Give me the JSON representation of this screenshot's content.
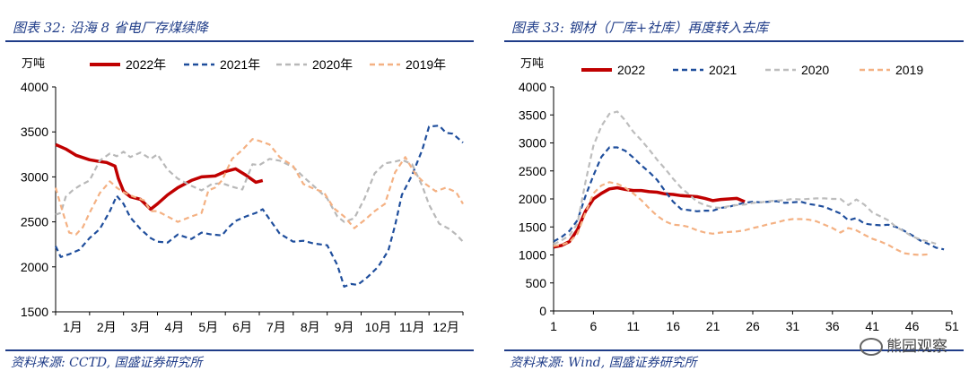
{
  "watermark": "熊园观察",
  "left": {
    "title": "图表 32:  沿海 8 省电厂存煤续降",
    "source": "资料来源:  CCTD,  国盛证券研究所",
    "chart_data": {
      "type": "line",
      "y_unit_label": "万吨",
      "ylim": [
        1500,
        4000
      ],
      "yticks": [
        1500,
        2000,
        2500,
        3000,
        3500,
        4000
      ],
      "xlim": [
        1,
        13
      ],
      "xticks": [
        1,
        2,
        3,
        4,
        5,
        6,
        7,
        8,
        9,
        10,
        11,
        12
      ],
      "xtick_labels": [
        "1月",
        "2月",
        "3月",
        "4月",
        "5月",
        "6月",
        "7月",
        "8月",
        "9月",
        "10月",
        "11月",
        "12月"
      ],
      "legend_position": "top",
      "series": [
        {
          "name": "2022年",
          "color": "#c00000",
          "dash": "solid",
          "width": 3.5,
          "x": [
            1,
            1.3,
            1.6,
            2,
            2.3,
            2.5,
            2.75,
            2.85,
            3,
            3.2,
            3.5,
            3.8,
            4,
            4.3,
            4.6,
            5,
            5.3,
            5.7,
            6,
            6.3,
            6.6,
            6.9,
            7.1
          ],
          "y": [
            3360,
            3310,
            3240,
            3190,
            3170,
            3160,
            3120,
            2980,
            2840,
            2780,
            2750,
            2640,
            2700,
            2800,
            2880,
            2960,
            3000,
            3010,
            3060,
            3090,
            3020,
            2940,
            2960
          ]
        },
        {
          "name": "2021年",
          "color": "#1f4e9c",
          "dash": "6,4",
          "width": 2.2,
          "x": [
            1,
            1.15,
            1.4,
            1.7,
            2,
            2.3,
            2.6,
            2.8,
            3,
            3.2,
            3.5,
            3.8,
            4,
            4.3,
            4.6,
            5,
            5.3,
            5.6,
            5.9,
            6.1,
            6.3,
            6.6,
            6.9,
            7.1,
            7.3,
            7.6,
            8,
            8.3,
            8.6,
            9,
            9.3,
            9.5,
            9.7,
            9.9,
            10.2,
            10.5,
            10.8,
            11,
            11.2,
            11.5,
            11.8,
            12,
            12.3,
            12.5,
            12.7,
            13
          ],
          "y": [
            2230,
            2110,
            2140,
            2190,
            2320,
            2420,
            2620,
            2790,
            2700,
            2550,
            2420,
            2320,
            2280,
            2270,
            2360,
            2310,
            2380,
            2360,
            2350,
            2440,
            2510,
            2560,
            2600,
            2640,
            2530,
            2370,
            2280,
            2290,
            2260,
            2240,
            2020,
            1780,
            1810,
            1800,
            1890,
            2000,
            2180,
            2460,
            2800,
            3020,
            3300,
            3560,
            3570,
            3490,
            3480,
            3380
          ]
        },
        {
          "name": "2020年",
          "color": "#b8b8b8",
          "dash": "6,4",
          "width": 2.2,
          "x": [
            1,
            1.15,
            1.3,
            1.5,
            1.7,
            2,
            2.3,
            2.6,
            2.8,
            3,
            3.2,
            3.5,
            3.8,
            4,
            4.3,
            4.6,
            5,
            5.3,
            5.6,
            5.9,
            6.2,
            6.5,
            6.8,
            7,
            7.3,
            7.6,
            8,
            8.3,
            8.6,
            9,
            9.3,
            9.5,
            9.8,
            10.1,
            10.4,
            10.7,
            11,
            11.2,
            11.5,
            11.8,
            12,
            12.3,
            12.6,
            12.8,
            13
          ],
          "y": [
            2580,
            2600,
            2780,
            2850,
            2900,
            2960,
            3180,
            3260,
            3230,
            3280,
            3220,
            3270,
            3200,
            3250,
            3080,
            2980,
            2900,
            2850,
            2920,
            2930,
            2890,
            2860,
            3140,
            3130,
            3200,
            3180,
            3110,
            3000,
            2900,
            2760,
            2560,
            2500,
            2540,
            2760,
            3040,
            3150,
            3170,
            3190,
            3140,
            2900,
            2690,
            2480,
            2420,
            2360,
            2280
          ]
        },
        {
          "name": "2019年",
          "color": "#f4b183",
          "dash": "6,4",
          "width": 2.2,
          "x": [
            1,
            1.2,
            1.4,
            1.6,
            1.8,
            2,
            2.3,
            2.6,
            2.8,
            3,
            3.3,
            3.6,
            3.8,
            4,
            4.3,
            4.6,
            5,
            5.3,
            5.5,
            5.7,
            5.9,
            6.2,
            6.5,
            6.8,
            7,
            7.3,
            7.6,
            8,
            8.3,
            8.6,
            8.9,
            9.2,
            9.5,
            9.8,
            10.1,
            10.4,
            10.7,
            11,
            11.3,
            11.6,
            11.9,
            12.2,
            12.5,
            12.8,
            13
          ],
          "y": [
            2880,
            2620,
            2380,
            2360,
            2440,
            2600,
            2820,
            2950,
            2880,
            2830,
            2780,
            2740,
            2620,
            2620,
            2560,
            2500,
            2560,
            2600,
            2850,
            2880,
            2960,
            3200,
            3300,
            3420,
            3400,
            3360,
            3220,
            3120,
            2920,
            2870,
            2830,
            2650,
            2560,
            2430,
            2520,
            2620,
            2700,
            3050,
            3220,
            3030,
            2920,
            2840,
            2880,
            2830,
            2700
          ]
        }
      ]
    }
  },
  "right": {
    "title": "图表 33:  钢材（厂库+社库）再度转入去库",
    "source": "资料来源:  Wind,  国盛证券研究所",
    "chart_data": {
      "type": "line",
      "y_unit_label": "万吨",
      "ylim": [
        0,
        4000
      ],
      "yticks": [
        0,
        500,
        1000,
        1500,
        2000,
        2500,
        3000,
        3500,
        4000
      ],
      "xlim": [
        1,
        51
      ],
      "xticks": [
        1,
        6,
        11,
        16,
        21,
        26,
        31,
        36,
        41,
        46,
        51
      ],
      "legend_position": "top",
      "series": [
        {
          "name": "2022",
          "color": "#c00000",
          "dash": "solid",
          "width": 3.5,
          "x": [
            1,
            2,
            3,
            4,
            5,
            6,
            7,
            8,
            9,
            10,
            11,
            12,
            13,
            14,
            15,
            16,
            17,
            18,
            19,
            20,
            21,
            22,
            23,
            24,
            25
          ],
          "y": [
            1140,
            1170,
            1240,
            1450,
            1780,
            2000,
            2100,
            2180,
            2200,
            2170,
            2150,
            2150,
            2130,
            2120,
            2090,
            2080,
            2060,
            2050,
            2040,
            2010,
            1970,
            1990,
            2000,
            2010,
            1950
          ]
        },
        {
          "name": "2021",
          "color": "#1f4e9c",
          "dash": "6,4",
          "width": 2.2,
          "x": [
            1,
            2,
            3,
            4,
            5,
            6,
            7,
            8,
            9,
            10,
            11,
            12,
            13,
            14,
            15,
            16,
            17,
            18,
            19,
            20,
            21,
            22,
            23,
            24,
            25,
            26,
            27,
            28,
            29,
            30,
            31,
            32,
            33,
            34,
            35,
            36,
            37,
            38,
            39,
            40,
            41,
            42,
            43,
            44,
            45,
            46,
            47,
            48,
            49,
            50
          ],
          "y": [
            1240,
            1320,
            1430,
            1620,
            2050,
            2420,
            2750,
            2920,
            2920,
            2860,
            2740,
            2600,
            2480,
            2340,
            2140,
            1950,
            1820,
            1800,
            1780,
            1790,
            1790,
            1840,
            1860,
            1900,
            1930,
            1950,
            1940,
            1950,
            1960,
            1930,
            1940,
            1950,
            1910,
            1890,
            1860,
            1800,
            1740,
            1620,
            1660,
            1560,
            1540,
            1530,
            1540,
            1500,
            1430,
            1350,
            1260,
            1200,
            1130,
            1100
          ]
        },
        {
          "name": "2020",
          "color": "#bdbdbd",
          "dash": "6,4",
          "width": 2.2,
          "x": [
            1,
            2,
            3,
            4,
            5,
            6,
            7,
            8,
            9,
            10,
            11,
            12,
            13,
            14,
            15,
            16,
            17,
            18,
            19,
            20,
            21,
            22,
            23,
            24,
            25,
            26,
            27,
            28,
            29,
            30,
            31,
            32,
            33,
            34,
            35,
            36,
            37,
            38,
            39,
            40,
            41,
            42,
            43,
            44,
            45,
            46,
            47,
            48,
            49
          ],
          "y": [
            1190,
            1260,
            1350,
            1560,
            2300,
            2950,
            3300,
            3520,
            3560,
            3400,
            3200,
            3050,
            2880,
            2700,
            2540,
            2360,
            2200,
            2080,
            1950,
            1890,
            1850,
            1840,
            1870,
            1890,
            1900,
            1930,
            1940,
            1960,
            1970,
            1980,
            2000,
            1990,
            2000,
            2010,
            2010,
            2000,
            2000,
            1890,
            1990,
            1900,
            1760,
            1690,
            1620,
            1500,
            1420,
            1330,
            1280,
            1240,
            1200
          ]
        },
        {
          "name": "2019",
          "color": "#f4b183",
          "dash": "6,4",
          "width": 2.2,
          "x": [
            1,
            2,
            3,
            4,
            5,
            6,
            7,
            8,
            9,
            10,
            11,
            12,
            13,
            14,
            15,
            16,
            17,
            18,
            19,
            20,
            21,
            22,
            23,
            24,
            25,
            26,
            27,
            28,
            29,
            30,
            31,
            32,
            33,
            34,
            35,
            36,
            37,
            38,
            39,
            40,
            41,
            42,
            43,
            44,
            45,
            46,
            47,
            48
          ],
          "y": [
            1160,
            1180,
            1230,
            1380,
            1750,
            2100,
            2240,
            2300,
            2270,
            2200,
            2100,
            1980,
            1830,
            1700,
            1600,
            1540,
            1530,
            1500,
            1440,
            1400,
            1380,
            1400,
            1410,
            1420,
            1440,
            1480,
            1510,
            1550,
            1580,
            1620,
            1640,
            1640,
            1630,
            1600,
            1540,
            1480,
            1400,
            1480,
            1440,
            1360,
            1290,
            1240,
            1180,
            1100,
            1030,
            1010,
            1000,
            1010
          ]
        }
      ]
    }
  }
}
